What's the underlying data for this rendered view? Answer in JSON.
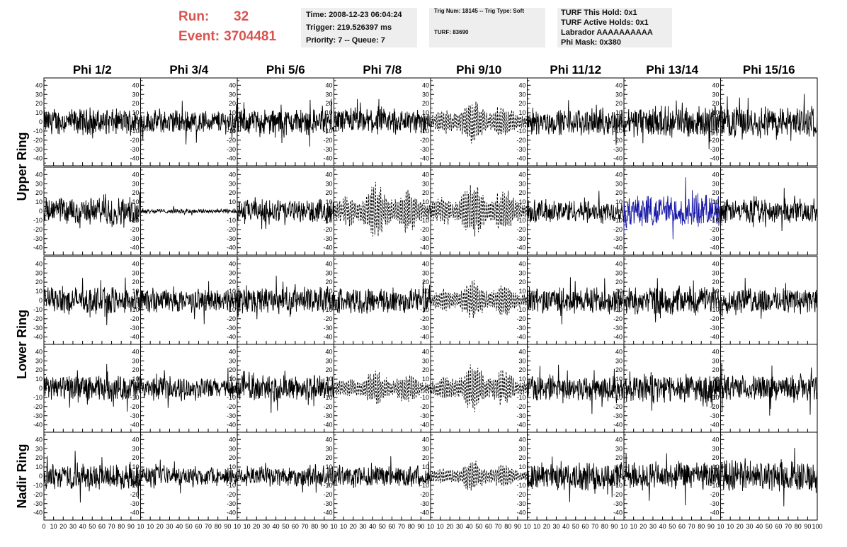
{
  "header": {
    "run_label": "Run:",
    "run_value": "32",
    "event_label": "Event:",
    "event_value": "3704481",
    "time": "Time: 2008-12-23 06:04:24",
    "trigger": "Trigger: 219.526397 ms",
    "priority": "Priority: 7 -- Queue: 7",
    "trig_num": "Trig Num: 18145 -- Trig Type: Soft",
    "turf": "TURF: 83690",
    "turf_this_hold": "TURF This Hold: 0x1",
    "turf_active_holds": "TURF Active Holds: 0x1",
    "labrador": "Labrador AAAAAAAAAA",
    "phi_mask": "Phi Mask: 0x380"
  },
  "chart_data": {
    "type": "line",
    "title": "",
    "columns": [
      "Phi 1/2",
      "Phi 3/4",
      "Phi 5/6",
      "Phi 7/8",
      "Phi 9/10",
      "Phi 11/12",
      "Phi 13/14",
      "Phi 15/16"
    ],
    "ring_labels": [
      "Upper Ring",
      "Lower Ring",
      "Nadir Ring"
    ],
    "rows": 5,
    "xlim": [
      0,
      100
    ],
    "ylim": [
      -48,
      48
    ],
    "x_ticks": [
      0,
      10,
      20,
      30,
      40,
      50,
      60,
      70,
      80,
      90,
      100
    ],
    "y_ticks": [
      -40,
      -30,
      -20,
      -10,
      0,
      10,
      20,
      30,
      40
    ],
    "x_tick_labels": [
      "0",
      "10",
      "20",
      "30",
      "40",
      "50",
      "60",
      "70",
      "80",
      "90",
      "100"
    ],
    "x_tick_labels_inner": [
      "",
      "10",
      "20",
      "30",
      "40",
      "50",
      "60",
      "70",
      "80",
      "90",
      "10"
    ],
    "y_tick_labels": [
      "-40",
      "-30",
      "-20",
      "-10",
      "0",
      "10",
      "20",
      "30",
      "40"
    ],
    "line_color": "#000000",
    "highlight_color": "#1a1aa8",
    "panel_amplitude": [
      [
        11,
        10,
        11,
        11,
        13,
        11,
        13,
        13
      ],
      [
        12,
        2,
        10,
        16,
        16,
        10,
        14,
        10
      ],
      [
        11,
        10,
        11,
        11,
        12,
        11,
        12,
        11
      ],
      [
        11,
        9,
        11,
        11,
        14,
        11,
        12,
        11
      ],
      [
        11,
        8,
        9,
        9,
        9,
        12,
        12,
        13
      ]
    ],
    "panel_style": [
      [
        "solid",
        "solid",
        "solid",
        "solid",
        "dashed",
        "solid",
        "solid",
        "solid"
      ],
      [
        "solid",
        "solid",
        "solid",
        "dashed",
        "dashed",
        "solid",
        "blue",
        "solid"
      ],
      [
        "solid",
        "solid",
        "solid",
        "solid",
        "dashed",
        "solid",
        "solid",
        "solid"
      ],
      [
        "solid",
        "solid",
        "solid",
        "dashed",
        "dashed",
        "solid",
        "solid",
        "solid"
      ],
      [
        "solid",
        "solid",
        "solid",
        "solid",
        "dashed",
        "solid",
        "solid",
        "solid"
      ]
    ]
  }
}
